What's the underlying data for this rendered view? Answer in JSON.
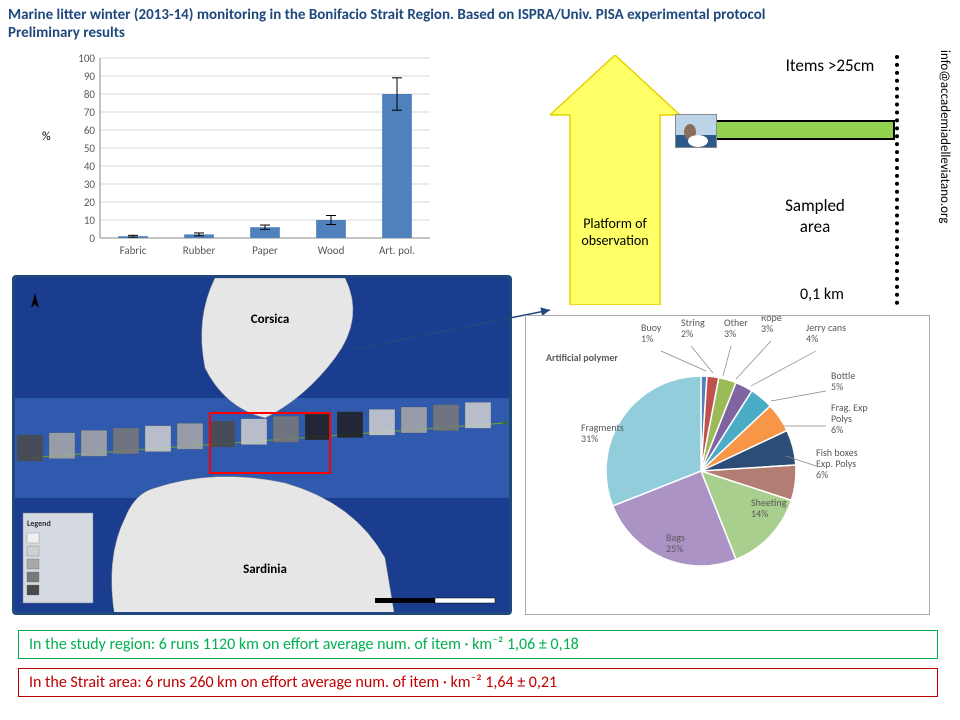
{
  "colors": {
    "title_blue": "#1f497d",
    "bar_fill": "#4f81bd",
    "map_border": "#1f497d",
    "arrow_fill": "#ffff66",
    "arrow_stroke": "#e6d200",
    "green_box": "#92d050",
    "result_green_border": "#00b050",
    "result_green_text": "#00b050",
    "result_red_border": "#c00000",
    "result_red_text": "#c00000"
  },
  "title_line1": "Marine litter winter (2013-14) monitoring in the Bonifacio Strait Region. Based on ISPRA/Univ. PISA experimental protocol",
  "title_line2": "Preliminary results",
  "contact_email": "info@accademiadelleviatano.org",
  "bar_chart": {
    "type": "bar",
    "ylabel": "%",
    "ylim": [
      0,
      100
    ],
    "ytick_step": 10,
    "categories": [
      "Fabric",
      "Rubber",
      "Paper",
      "Wood",
      "Art. pol."
    ],
    "values": [
      1,
      2,
      6,
      10,
      80
    ],
    "err": [
      0.5,
      0.8,
      1.2,
      2.5,
      9
    ],
    "bar_color": "#4f81bd",
    "grid_color": "#d9d9d9",
    "axis_color": "#888888",
    "label_fontsize": 11
  },
  "map": {
    "label_top": "Corsica",
    "label_bottom": "Sardinia",
    "sea_color": "#1a3d8f",
    "shallow_color": "#3d6ec2",
    "land_color": "#e6e6e6",
    "border_color": "#1f497d",
    "highlight_box_color": "#ff0000"
  },
  "schematic": {
    "top_label": "Items >25cm",
    "platform_label1": "Platform of",
    "platform_label2": "observation",
    "sampled_label1": "Sampled",
    "sampled_label2": "area",
    "bottom_label": "0,1 km"
  },
  "pie_chart": {
    "type": "pie",
    "title": "Artificial polymer",
    "background_color": "#ffffff",
    "callout_color": "#1f497d",
    "slices": [
      {
        "label": "Buoy",
        "pct": 1,
        "color": "#4f81bd"
      },
      {
        "label": "String",
        "pct": 2,
        "color": "#c0504d"
      },
      {
        "label": "Other",
        "pct": 3,
        "color": "#9bbb59"
      },
      {
        "label": "Rope",
        "pct": 3,
        "color": "#8064a2"
      },
      {
        "label": "Jerry cans",
        "pct": 4,
        "color": "#4bacc6"
      },
      {
        "label": "Bottle",
        "pct": 5,
        "color": "#f79646"
      },
      {
        "label": "Frag. Exp Polys",
        "pct": 6,
        "color": "#2c4d75"
      },
      {
        "label": "Fish boxes Exp. Polys",
        "pct": 6,
        "color": "#b47d74"
      },
      {
        "label": "Sheeting",
        "pct": 14,
        "color": "#a8cf8e"
      },
      {
        "label": "Bags",
        "pct": 25,
        "color": "#ab93c5"
      },
      {
        "label": "Fragments",
        "pct": 31,
        "color": "#92cddc"
      }
    ],
    "label_lines": [
      {
        "text": "Buoy",
        "sub": "1%",
        "x": 640,
        "y": 330,
        "lx1": 705,
        "ly1": 370,
        "lx2": 660,
        "ly2": 350
      },
      {
        "text": "String",
        "sub": "2%",
        "x": 680,
        "y": 325,
        "lx1": 712,
        "ly1": 372,
        "lx2": 690,
        "ly2": 345
      },
      {
        "text": "Other",
        "sub": "3%",
        "x": 723,
        "y": 325,
        "lx1": 722,
        "ly1": 375,
        "lx2": 730,
        "ly2": 345
      },
      {
        "text": "Rope",
        "sub": "3%",
        "x": 760,
        "y": 320,
        "lx1": 735,
        "ly1": 378,
        "lx2": 770,
        "ly2": 340
      },
      {
        "text": "Jerry cans",
        "sub": "4%",
        "x": 805,
        "y": 330,
        "lx1": 750,
        "ly1": 385,
        "lx2": 815,
        "ly2": 350
      },
      {
        "text": "Bottle",
        "sub": "5%",
        "x": 830,
        "y": 378,
        "lx1": 770,
        "ly1": 400,
        "lx2": 825,
        "ly2": 390
      },
      {
        "text": "Frag. Exp",
        "sub": "Polys",
        "sub2": "6%",
        "x": 830,
        "y": 410,
        "lx1": 782,
        "ly1": 425,
        "lx2": 825,
        "ly2": 425
      },
      {
        "text": "Fish boxes",
        "sub": "Exp. Polys",
        "sub2": "6%",
        "x": 815,
        "y": 455,
        "lx1": 785,
        "ly1": 455,
        "lx2": 815,
        "ly2": 465
      },
      {
        "text": "Sheeting",
        "sub": "14%",
        "x": 750,
        "y": 505,
        "lx1": 0,
        "ly1": 0,
        "lx2": 0,
        "ly2": 0
      },
      {
        "text": "Bags",
        "sub": "25%",
        "x": 665,
        "y": 540,
        "lx1": 0,
        "ly1": 0,
        "lx2": 0,
        "ly2": 0
      },
      {
        "text": "Fragments",
        "sub": "31%",
        "x": 580,
        "y": 430,
        "lx1": 0,
        "ly1": 0,
        "lx2": 0,
        "ly2": 0
      }
    ]
  },
  "result_green": "In the study region:   6 runs 1120 km on effort   average num. of item · km⁻²  1,06 ± 0,18",
  "result_red": "In the Strait area:        6 runs   260 km on effort   average num. of item · km⁻²  1,64 ± 0,21"
}
